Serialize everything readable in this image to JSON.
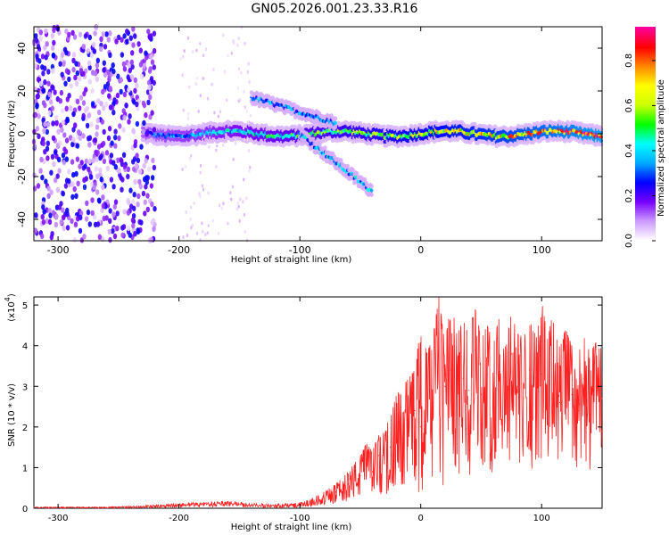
{
  "figure": {
    "title": "GN05.2026.001.23.33.R16"
  },
  "chart_data": [
    {
      "type": "heatmap",
      "xlabel": "Height of straight line (km)",
      "ylabel": "Frequency (Hz)",
      "xlim": [
        -320,
        150
      ],
      "ylim": [
        -50,
        50
      ],
      "xticks": [
        -300,
        -200,
        -100,
        0,
        100
      ],
      "yticks": [
        -40,
        -20,
        0,
        20,
        40
      ],
      "colorbar": {
        "label": "Normalized spectral amplitude",
        "range": [
          0,
          0.95
        ],
        "ticks": [
          0.0,
          0.2,
          0.4,
          0.6,
          0.8
        ],
        "colormap": [
          "#ffffff",
          "#cc99ff",
          "#7700ff",
          "#0000ff",
          "#00aaff",
          "#00ffff",
          "#00ff00",
          "#ccff00",
          "#ffff00",
          "#ff8800",
          "#ff0000",
          "#ff0099"
        ]
      },
      "features": [
        {
          "name": "main-band",
          "x_from": -230,
          "x_to": 150,
          "frequency_hz": 0,
          "amplitude": [
            0.3,
            0.85
          ]
        },
        {
          "name": "upper-branch",
          "x_from": -140,
          "x_to": -70,
          "frequency_hz_from": 17,
          "frequency_hz_to": 5,
          "amplitude": 0.35
        },
        {
          "name": "lower-branch",
          "x_from": -100,
          "x_to": -40,
          "frequency_hz_from": 0,
          "frequency_hz_to": -27,
          "amplitude": 0.4
        },
        {
          "name": "noise-region",
          "x_from": -320,
          "x_to": -220,
          "frequency_hz_from": -50,
          "frequency_hz_to": 50,
          "amplitude": 0.15
        }
      ]
    },
    {
      "type": "line",
      "xlabel": "Height of straight line (km)",
      "ylabel": "SNR (10 * v/v)",
      "multiplier_label": "(x10",
      "multiplier_exp": "4",
      "multiplier_close": ")",
      "xlim": [
        -320,
        150
      ],
      "ylim": [
        0,
        5.2
      ],
      "xticks": [
        -300,
        -200,
        -100,
        0,
        100
      ],
      "yticks": [
        0,
        1,
        2,
        3,
        4,
        5
      ],
      "series": [
        {
          "color": "#ff2020",
          "x": [
            -320,
            -300,
            -280,
            -260,
            -240,
            -220,
            -200,
            -180,
            -160,
            -140,
            -120,
            -100,
            -90,
            -80,
            -70,
            -60,
            -50,
            -45,
            -40,
            -35,
            -30,
            -25,
            -20,
            -15,
            -10,
            -5,
            0,
            5,
            10,
            15,
            20,
            25,
            30,
            35,
            40,
            45,
            50,
            55,
            60,
            65,
            70,
            75,
            80,
            85,
            90,
            95,
            100,
            105,
            110,
            115,
            120,
            125,
            130,
            135,
            140,
            145,
            150
          ],
          "values": [
            0.02,
            0.02,
            0.02,
            0.02,
            0.03,
            0.05,
            0.08,
            0.1,
            0.12,
            0.08,
            0.06,
            0.08,
            0.15,
            0.25,
            0.4,
            0.6,
            0.8,
            1.2,
            0.9,
            1.3,
            1.1,
            1.5,
            1.9,
            1.7,
            2.1,
            2.4,
            2.0,
            3.5,
            2.6,
            4.5,
            3.0,
            3.4,
            2.7,
            3.2,
            2.9,
            3.9,
            2.8,
            3.3,
            2.6,
            3.6,
            2.5,
            3.8,
            3.0,
            2.7,
            3.4,
            2.6,
            3.3,
            2.9,
            3.5,
            2.6,
            3.1,
            2.8,
            2.4,
            3.2,
            2.3,
            3.0,
            2.7
          ],
          "envelope_max": [
            0.03,
            0.03,
            0.03,
            0.03,
            0.05,
            0.08,
            0.12,
            0.15,
            0.18,
            0.12,
            0.1,
            0.15,
            0.25,
            0.4,
            0.6,
            0.9,
            1.3,
            1.6,
            1.4,
            1.8,
            1.9,
            2.3,
            2.8,
            3.0,
            3.2,
            3.4,
            4.6,
            3.8,
            4.2,
            5.2,
            4.0,
            5.1,
            4.3,
            4.6,
            4.4,
            4.9,
            4.2,
            4.5,
            4.1,
            4.7,
            4.0,
            4.8,
            4.3,
            4.2,
            4.6,
            4.3,
            5.1,
            4.2,
            4.9,
            4.1,
            4.4,
            4.0,
            3.9,
            4.3,
            3.8,
            4.1,
            3.9
          ],
          "envelope_min": [
            0.0,
            0.0,
            0.0,
            0.0,
            0.0,
            0.01,
            0.02,
            0.03,
            0.04,
            0.02,
            0.01,
            0.02,
            0.05,
            0.08,
            0.1,
            0.15,
            0.2,
            0.3,
            0.25,
            0.3,
            0.3,
            0.4,
            0.5,
            0.6,
            0.5,
            0.7,
            0.2,
            0.6,
            0.8,
            0.9,
            0.4,
            1.0,
            0.7,
            1.1,
            0.8,
            0.9,
            1.0,
            1.2,
            0.5,
            1.1,
            0.9,
            1.3,
            1.0,
            1.2,
            0.8,
            1.1,
            1.0,
            1.3,
            0.9,
            1.2,
            1.1,
            1.0,
            0.9,
            1.2,
            0.8,
            1.1,
            1.0
          ]
        }
      ]
    }
  ]
}
